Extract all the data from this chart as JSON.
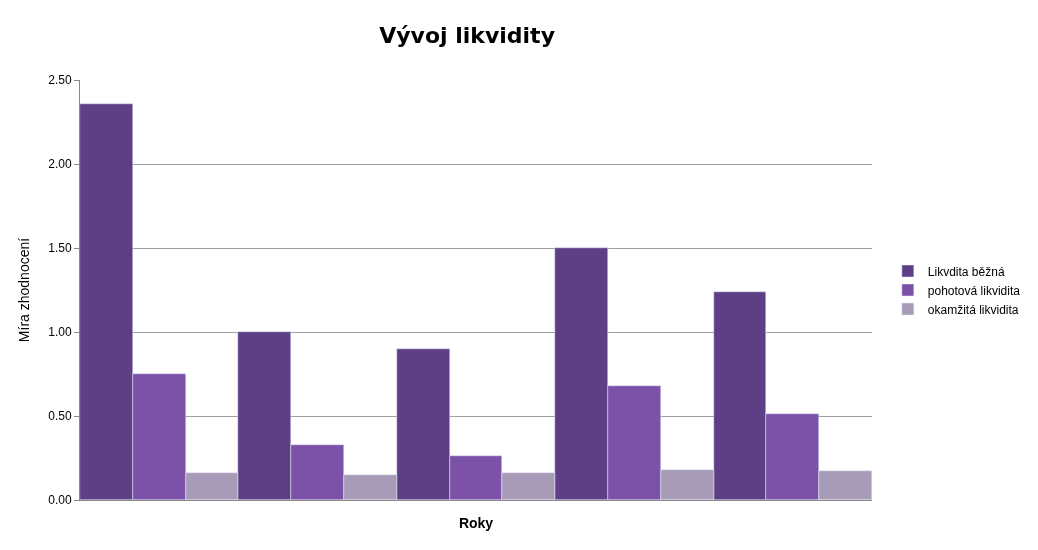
{
  "chart_data": {
    "type": "bar",
    "title": "Vývoj likvidity",
    "xlabel": "Roky",
    "ylabel": "Míra zhodnocení",
    "categories": [
      null,
      null,
      null,
      null,
      null
    ],
    "series": [
      {
        "name": "Likvdita běžná",
        "color": "#5e3f86",
        "values": [
          2.36,
          1.0,
          0.9,
          1.5,
          1.24
        ]
      },
      {
        "name": "pohotová likvidita",
        "color": "#7b52a8",
        "values": [
          0.75,
          0.33,
          0.26,
          0.68,
          0.51
        ]
      },
      {
        "name": "okamžitá likvidita",
        "color": "#a89bb8",
        "values": [
          0.16,
          0.15,
          0.16,
          0.18,
          0.17
        ]
      }
    ],
    "ylim": [
      0,
      2.5
    ],
    "yticks": [
      {
        "value": 0,
        "label": "0.00"
      },
      {
        "value": 0.5,
        "label": "0.50"
      },
      {
        "value": 1,
        "label": "1.00"
      },
      {
        "value": 1.5,
        "label": "1.50"
      },
      {
        "value": 2,
        "label": "2.00"
      },
      {
        "value": 2.5,
        "label": "2.50"
      }
    ],
    "grid": "y",
    "legend": "right"
  }
}
